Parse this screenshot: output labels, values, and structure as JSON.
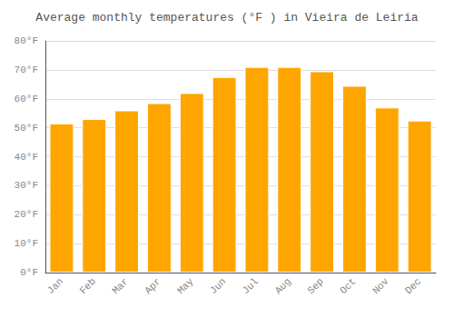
{
  "chart_data": {
    "type": "bar",
    "title": "Average monthly temperatures (°F ) in Vieira de Leiria",
    "categories": [
      "Jan",
      "Feb",
      "Mar",
      "Apr",
      "May",
      "Jun",
      "Jul",
      "Aug",
      "Sep",
      "Oct",
      "Nov",
      "Dec"
    ],
    "values": [
      51.5,
      53.0,
      56.0,
      58.5,
      62.0,
      67.5,
      71.0,
      71.0,
      69.5,
      64.5,
      57.0,
      52.5
    ],
    "color": "#FFA500",
    "ylim": [
      0,
      80
    ],
    "yticks": [
      {
        "value": 0,
        "label": "0°F"
      },
      {
        "value": 10,
        "label": "10°F"
      },
      {
        "value": 20,
        "label": "20°F"
      },
      {
        "value": 30,
        "label": "30°F"
      },
      {
        "value": 40,
        "label": "40°F"
      },
      {
        "value": 50,
        "label": "50°F"
      },
      {
        "value": 60,
        "label": "60°F"
      },
      {
        "value": 70,
        "label": "70°F"
      },
      {
        "value": 80,
        "label": "80°F"
      }
    ],
    "grid": true
  }
}
